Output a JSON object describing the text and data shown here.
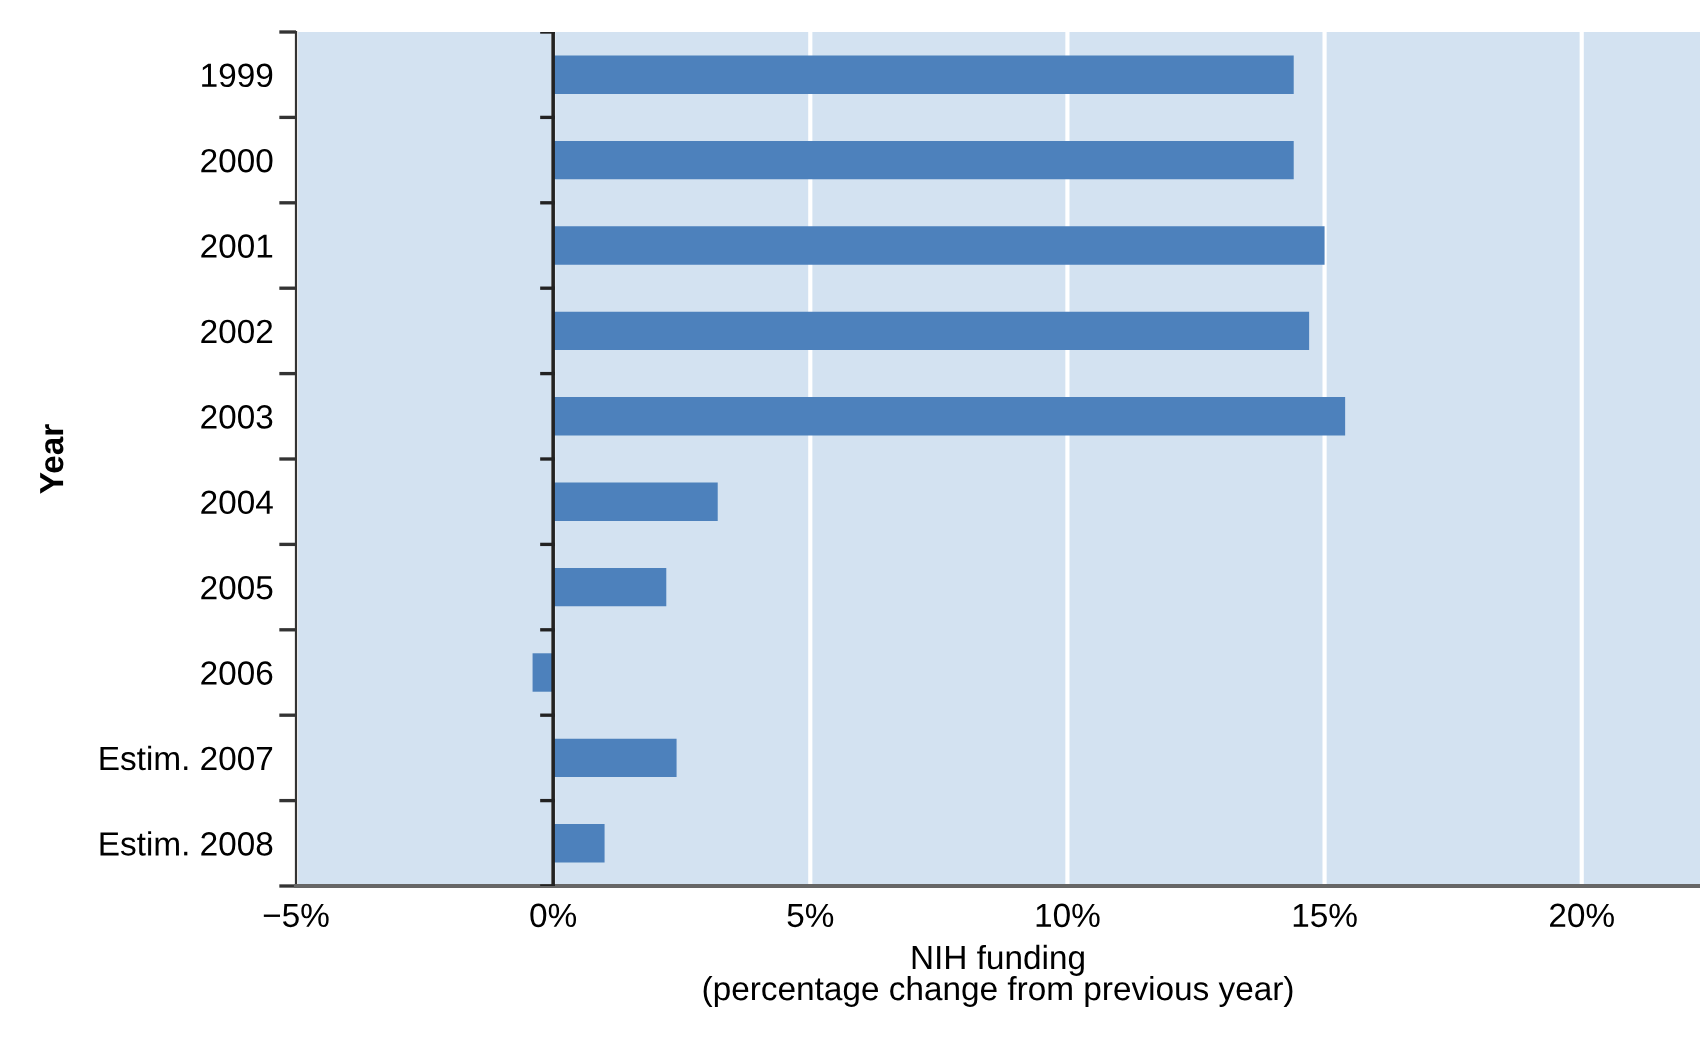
{
  "chart_data": {
    "type": "bar",
    "orientation": "horizontal",
    "xlabel": "NIH funding\n(percentage change from previous year)",
    "ylabel": "Year",
    "categories": [
      "1999",
      "2000",
      "2001",
      "2002",
      "2003",
      "2004",
      "2005",
      "2006",
      "Estim. 2007",
      "Estim. 2008"
    ],
    "values": [
      14.4,
      14.4,
      15.0,
      14.7,
      15.4,
      3.2,
      2.2,
      -0.4,
      2.4,
      1.0
    ],
    "color": "#4d81bc",
    "xlim": [
      -5,
      22.3
    ],
    "xticks": [
      {
        "value": -5,
        "label": "−5%"
      },
      {
        "value": 0,
        "label": "0%"
      },
      {
        "value": 5,
        "label": "5%"
      },
      {
        "value": 10,
        "label": "10%"
      },
      {
        "value": 15,
        "label": "15%"
      },
      {
        "value": 20,
        "label": "20%"
      }
    ],
    "grid": "x",
    "ref_lines": [
      {
        "axis": "x",
        "value": 0,
        "label": null,
        "color": "#222222"
      }
    ]
  }
}
